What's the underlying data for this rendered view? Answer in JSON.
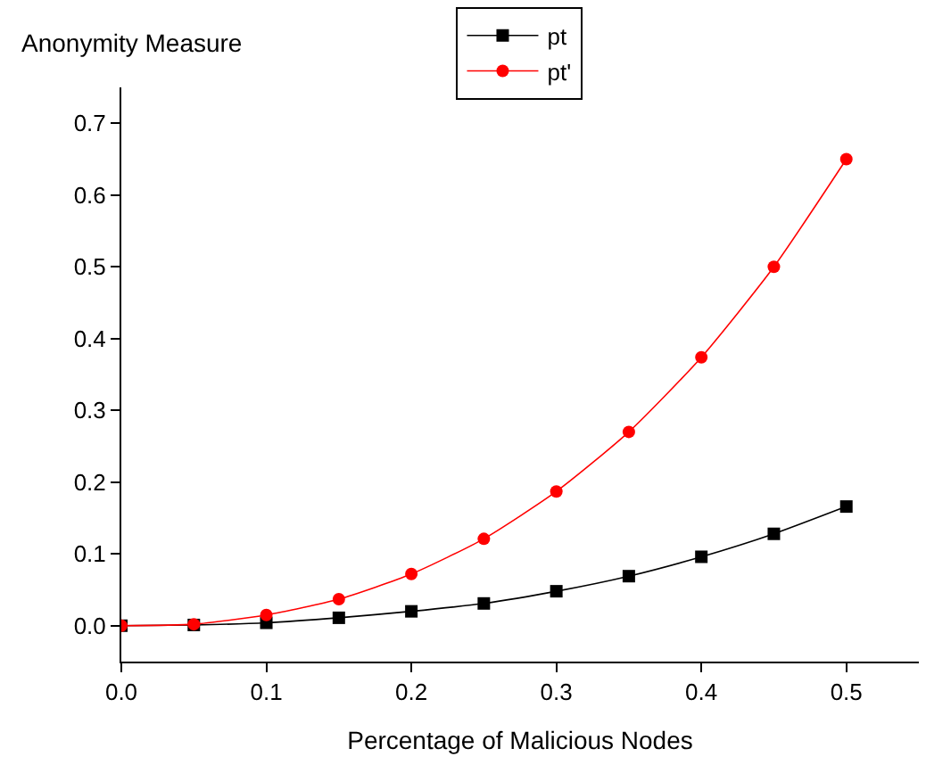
{
  "chart_data": {
    "type": "line",
    "ylabel": "Anonymity Measure",
    "xlabel": "Percentage of Malicious Nodes",
    "x": [
      0,
      0.05,
      0.1,
      0.15,
      0.2,
      0.25,
      0.3,
      0.35,
      0.4,
      0.45,
      0.5
    ],
    "series": [
      {
        "name": "pt",
        "color": "#000000",
        "marker": "square",
        "values": [
          0,
          0.001,
          0.004,
          0.011,
          0.02,
          0.031,
          0.048,
          0.069,
          0.096,
          0.128,
          0.166
        ]
      },
      {
        "name": "pt'",
        "color": "#ff0000",
        "marker": "circle",
        "values": [
          0,
          0.002,
          0.015,
          0.037,
          0.072,
          0.121,
          0.187,
          0.27,
          0.374,
          0.5,
          0.65
        ]
      }
    ],
    "xlim": [
      0,
      0.55
    ],
    "xticks": [
      {
        "value": 0,
        "label": "0.0"
      },
      0.1,
      0.2,
      0.3,
      0.4,
      0.5
    ],
    "ylim": [
      -0.05,
      0.75
    ],
    "yticks": [
      {
        "value": 0,
        "label": "0.0"
      },
      0.1,
      0.2,
      0.3,
      0.4,
      0.5,
      0.6,
      0.7
    ],
    "legend": "top"
  }
}
